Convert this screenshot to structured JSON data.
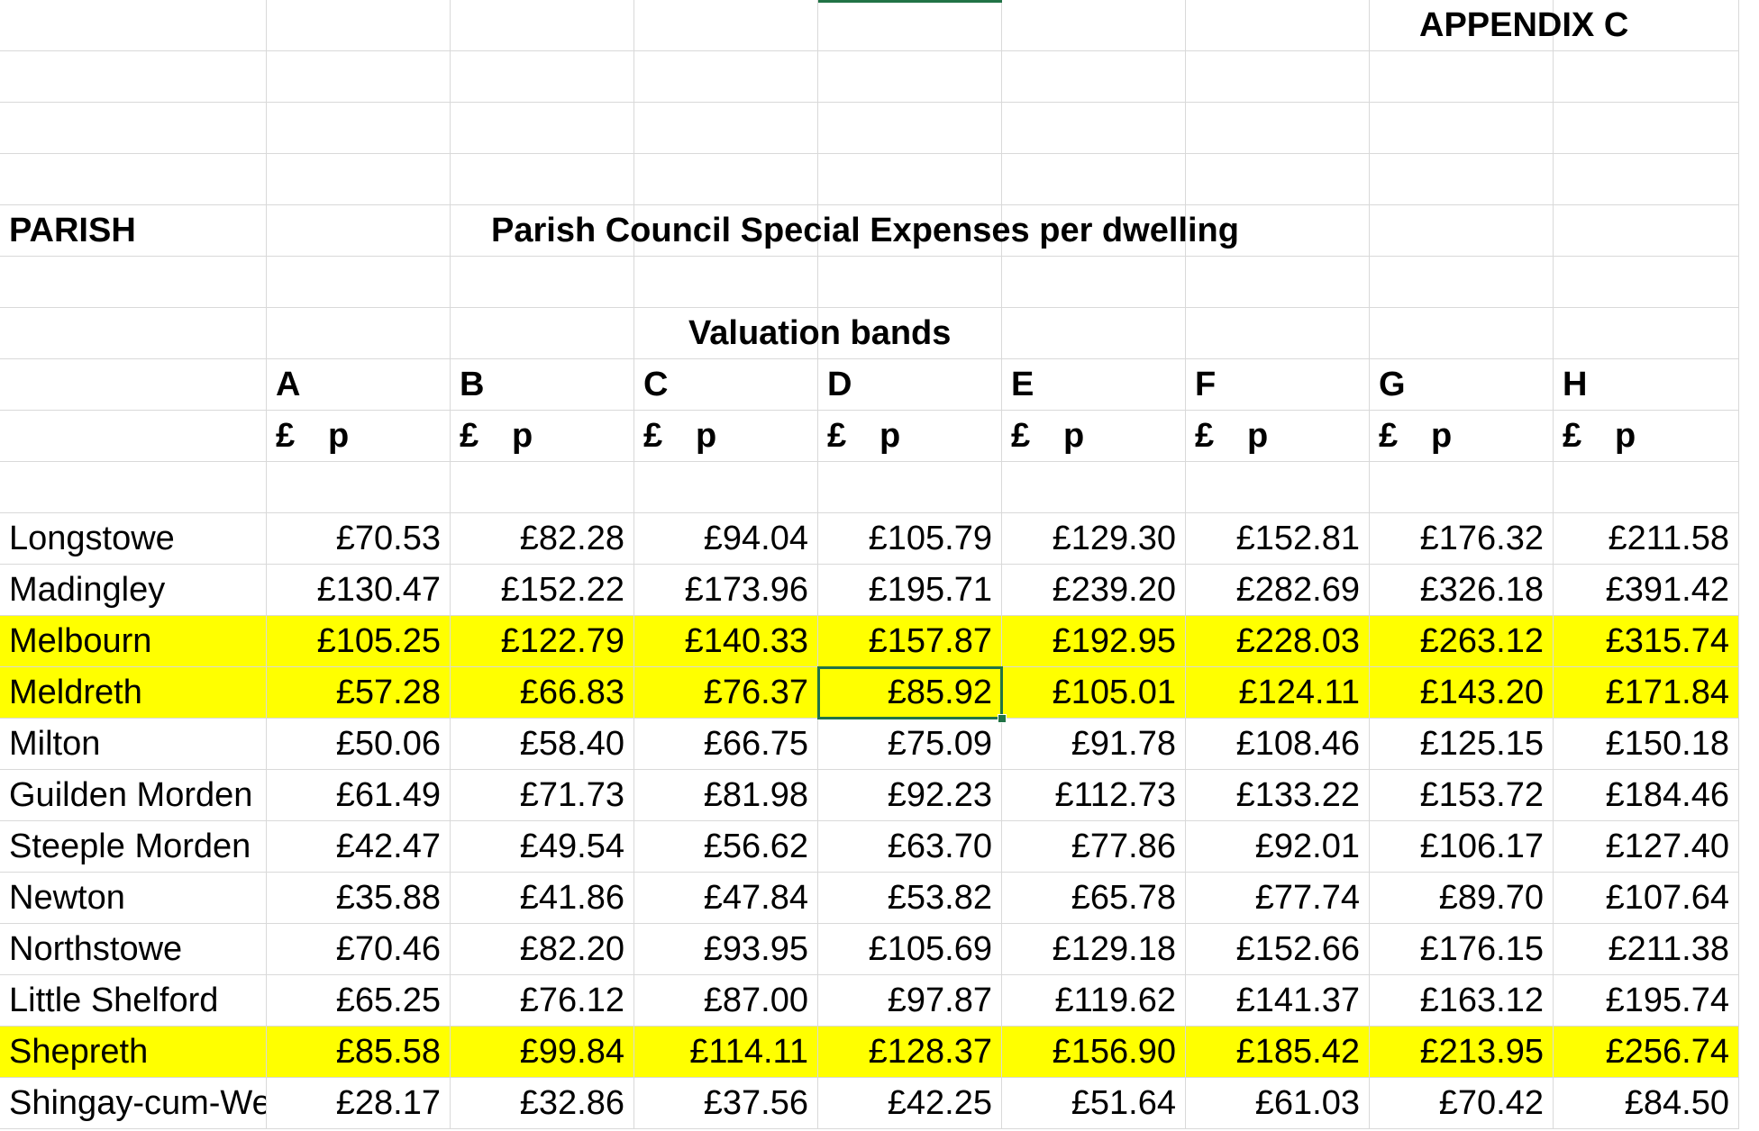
{
  "sheet": {
    "appendix_label": "APPENDIX C",
    "parish_header": "PARISH",
    "title": "Parish Council Special Expenses per dwelling",
    "subtitle": "Valuation bands",
    "bands": [
      "A",
      "B",
      "C",
      "D",
      "E",
      "F",
      "G",
      "H"
    ],
    "currency_label": "£",
    "pence_label": "p",
    "rows": [
      {
        "parish": "Longstowe",
        "highlight": false,
        "values": [
          "£70.53",
          "£82.28",
          "£94.04",
          "£105.79",
          "£129.30",
          "£152.81",
          "£176.32",
          "£211.58"
        ]
      },
      {
        "parish": "Madingley",
        "highlight": false,
        "values": [
          "£130.47",
          "£152.22",
          "£173.96",
          "£195.71",
          "£239.20",
          "£282.69",
          "£326.18",
          "£391.42"
        ]
      },
      {
        "parish": "Melbourn",
        "highlight": true,
        "values": [
          "£105.25",
          "£122.79",
          "£140.33",
          "£157.87",
          "£192.95",
          "£228.03",
          "£263.12",
          "£315.74"
        ]
      },
      {
        "parish": "Meldreth",
        "highlight": true,
        "values": [
          "£57.28",
          "£66.83",
          "£76.37",
          "£85.92",
          "£105.01",
          "£124.11",
          "£143.20",
          "£171.84"
        ]
      },
      {
        "parish": "Milton",
        "highlight": false,
        "values": [
          "£50.06",
          "£58.40",
          "£66.75",
          "£75.09",
          "£91.78",
          "£108.46",
          "£125.15",
          "£150.18"
        ]
      },
      {
        "parish": "Guilden Morden",
        "highlight": false,
        "values": [
          "£61.49",
          "£71.73",
          "£81.98",
          "£92.23",
          "£112.73",
          "£133.22",
          "£153.72",
          "£184.46"
        ]
      },
      {
        "parish": "Steeple Morden",
        "highlight": false,
        "values": [
          "£42.47",
          "£49.54",
          "£56.62",
          "£63.70",
          "£77.86",
          "£92.01",
          "£106.17",
          "£127.40"
        ]
      },
      {
        "parish": "Newton",
        "highlight": false,
        "values": [
          "£35.88",
          "£41.86",
          "£47.84",
          "£53.82",
          "£65.78",
          "£77.74",
          "£89.70",
          "£107.64"
        ]
      },
      {
        "parish": "Northstowe",
        "highlight": false,
        "values": [
          "£70.46",
          "£82.20",
          "£93.95",
          "£105.69",
          "£129.18",
          "£152.66",
          "£176.15",
          "£211.38"
        ]
      },
      {
        "parish": "Little Shelford",
        "highlight": false,
        "values": [
          "£65.25",
          "£76.12",
          "£87.00",
          "£97.87",
          "£119.62",
          "£141.37",
          "£163.12",
          "£195.74"
        ]
      },
      {
        "parish": "Shepreth",
        "highlight": true,
        "values": [
          "£85.58",
          "£99.84",
          "£114.11",
          "£128.37",
          "£156.90",
          "£185.42",
          "£213.95",
          "£256.74"
        ]
      },
      {
        "parish": "Shingay-cum-We",
        "highlight": false,
        "values": [
          "£28.17",
          "£32.86",
          "£37.56",
          "£42.25",
          "£51.64",
          "£61.03",
          "£70.42",
          "£84.50"
        ]
      }
    ],
    "selected_cell": {
      "row": 3,
      "col": 3
    }
  },
  "colors": {
    "highlight": "#ffff00",
    "gridline": "#d9d9d9",
    "selection": "#217346"
  }
}
